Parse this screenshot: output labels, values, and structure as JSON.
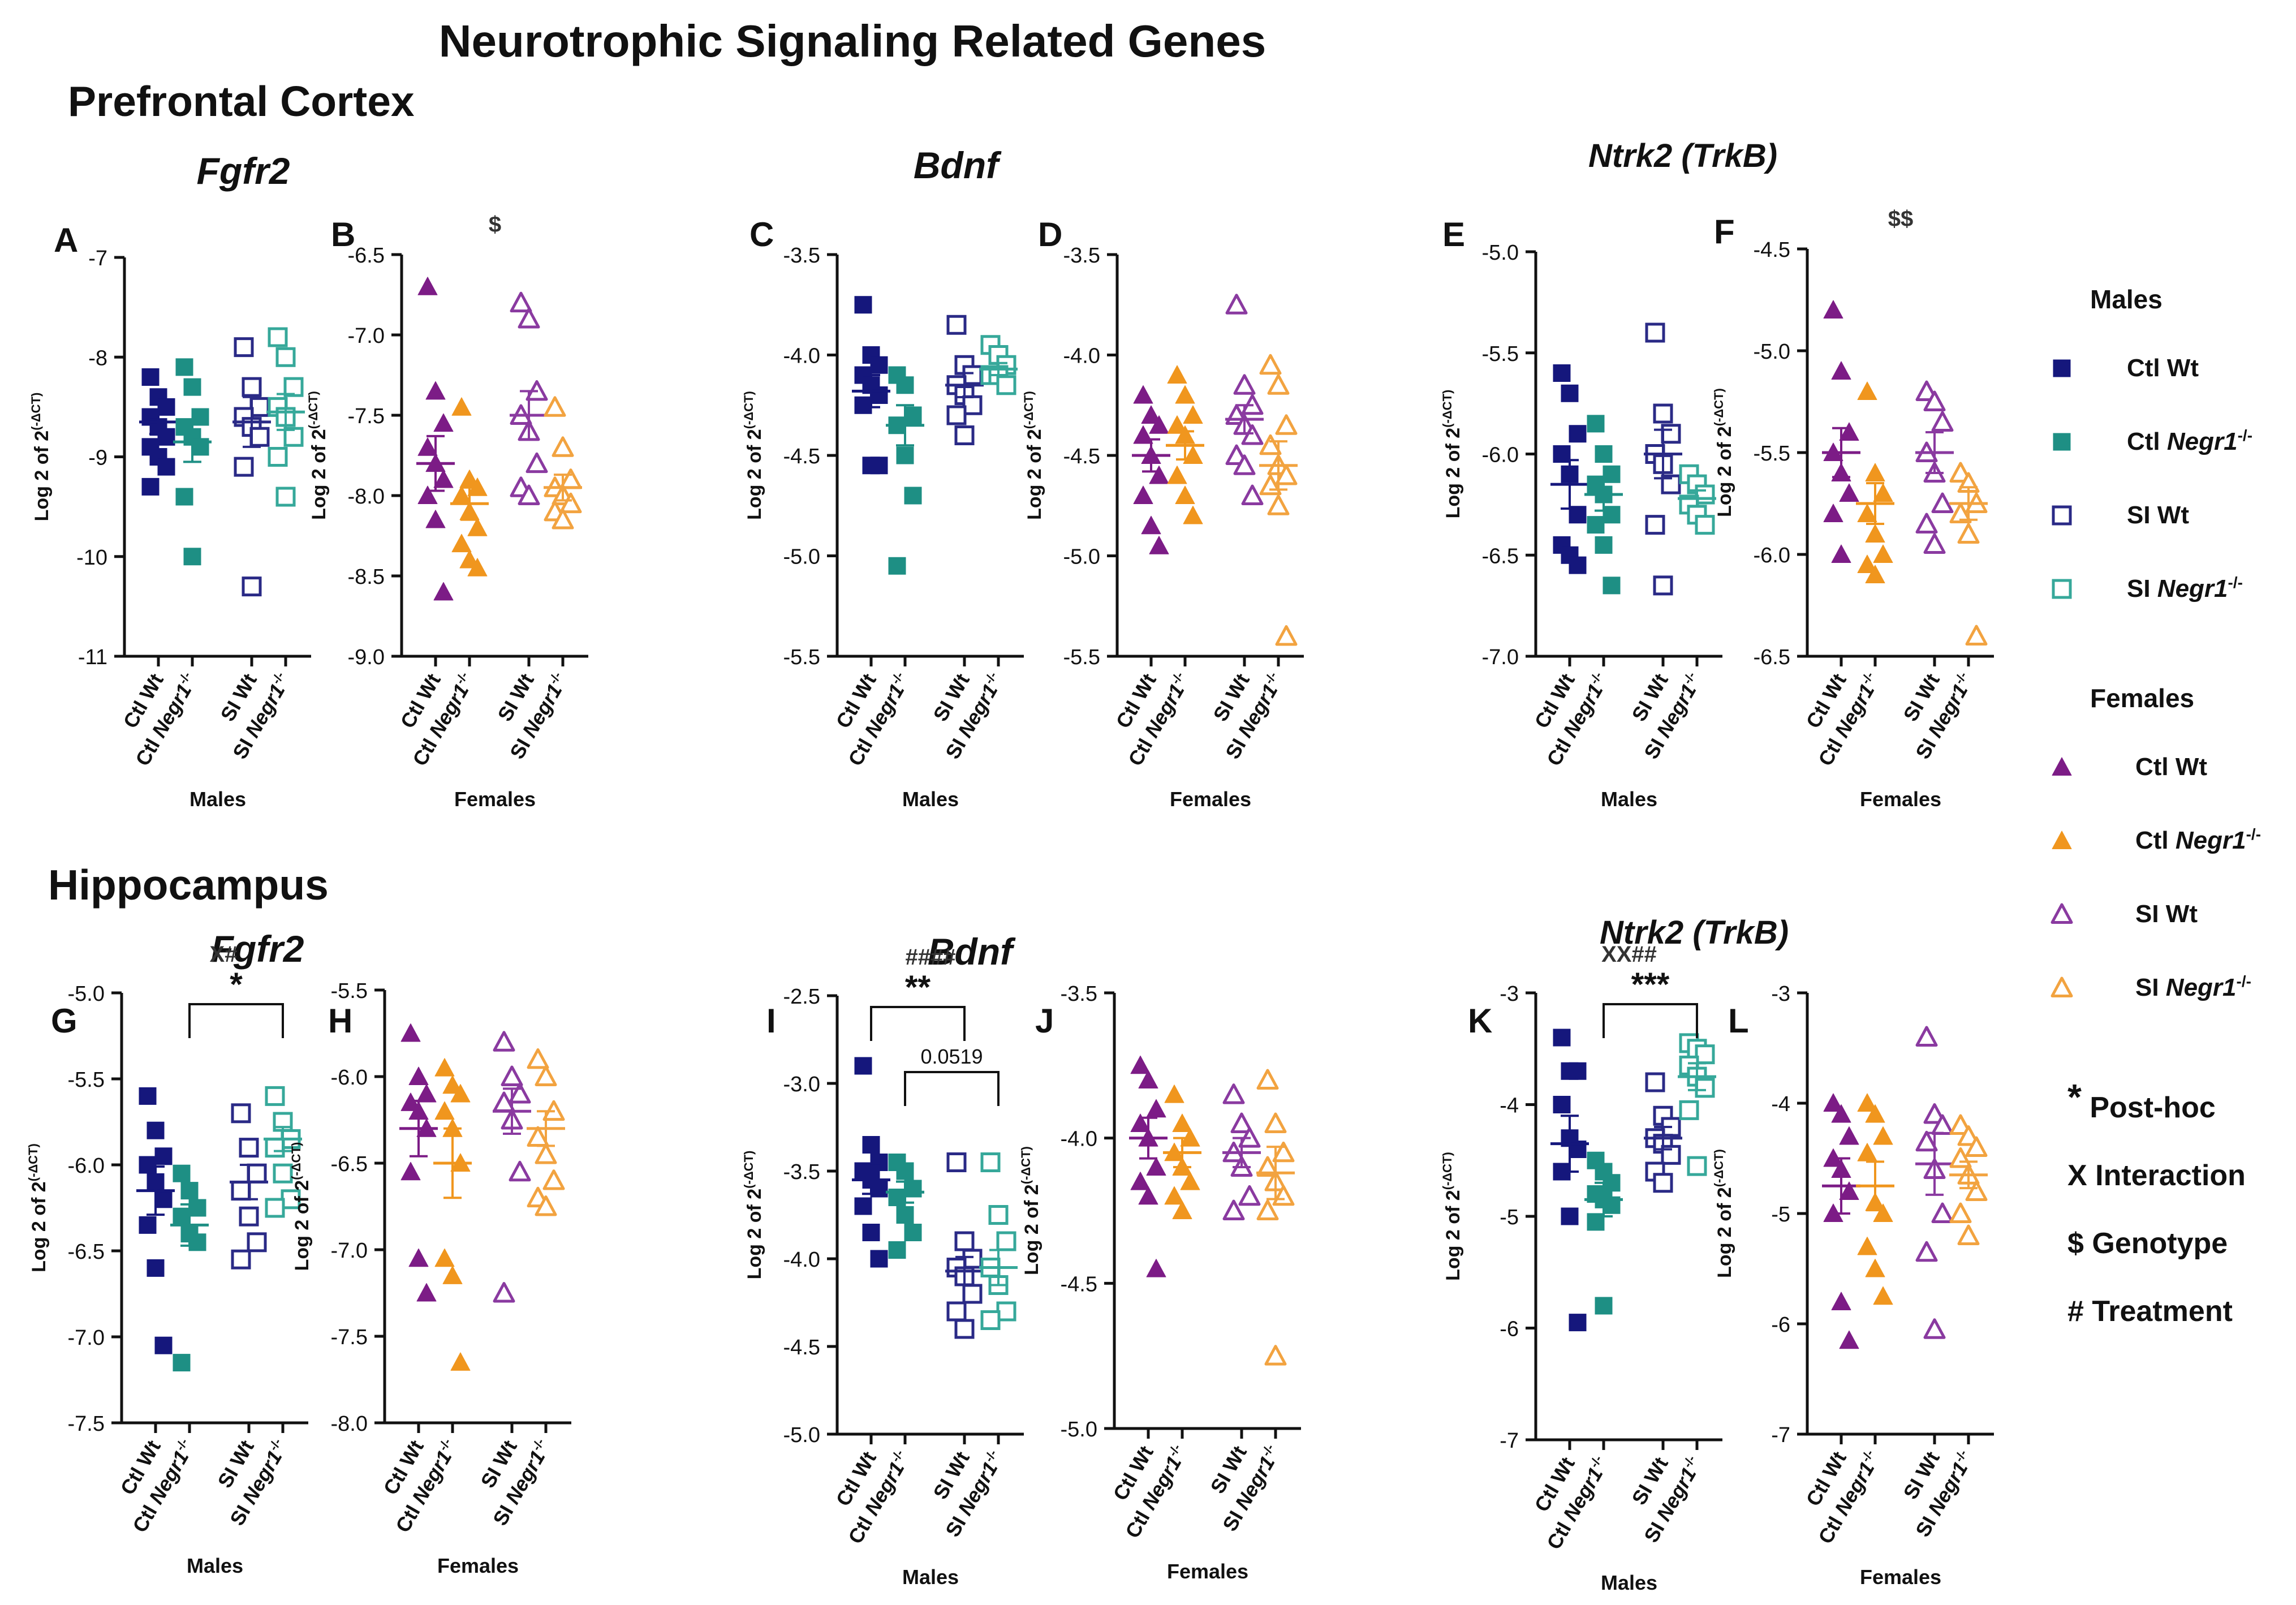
{
  "title": "Neurotrophic Signaling Related Genes",
  "regions": [
    {
      "id": "pfc",
      "label": "Prefrontal Cortex"
    },
    {
      "id": "hip",
      "label": "Hippocampus"
    }
  ],
  "gene_titles": {
    "pfc_fgfr2": "Fgfr2",
    "pfc_bdnf": "Bdnf",
    "pfc_ntrk2": "Ntrk2 (TrkB)",
    "hip_fgfr2": "Fgfr2",
    "hip_bdnf": "Bdnf",
    "hip_ntrk2": "Ntrk2 (TrkB)"
  },
  "ylabel_base": "Log 2 of 2",
  "ylabel_sup": "(-ΔCT)",
  "cat_labels": [
    {
      "prefix": "Ctl ",
      "gene": "Wt",
      "italic": false
    },
    {
      "prefix": "Ctl ",
      "gene": "Negr1",
      "sup": "-/-",
      "italic": true
    },
    {
      "prefix": "SI ",
      "gene": "Wt",
      "italic": false
    },
    {
      "prefix": "SI ",
      "gene": "Negr1",
      "sup": "-/-",
      "italic": true
    }
  ],
  "colors": {
    "ctl_wt_male": "#15177c",
    "ctl_ko_male": "#1e8f84",
    "si_wt_male": "#2a2a86",
    "si_ko_male": "#36a89a",
    "ctl_wt_female": "#7c1c86",
    "ctl_ko_female": "#f0961e",
    "si_wt_female": "#8a3aa0",
    "si_ko_female": "#f2a340"
  },
  "legend": {
    "males_title": "Males",
    "females_title": "Females",
    "male_entries": [
      {
        "marker": "square-filled",
        "color": "#15177c",
        "prefix": "Ctl ",
        "gene": "Wt",
        "sup": "",
        "italic": false
      },
      {
        "marker": "square-filled",
        "color": "#1e8f84",
        "prefix": "Ctl ",
        "gene": "Negr1",
        "sup": "-/-",
        "italic": true
      },
      {
        "marker": "square-open",
        "color": "#2a2a86",
        "prefix": "SI ",
        "gene": "Wt",
        "sup": "",
        "italic": false
      },
      {
        "marker": "square-open",
        "color": "#36a89a",
        "prefix": "SI ",
        "gene": "Negr1",
        "sup": "-/-",
        "italic": true
      }
    ],
    "female_entries": [
      {
        "marker": "triangle-filled",
        "color": "#7c1c86",
        "prefix": "Ctl ",
        "gene": "Wt",
        "sup": "",
        "italic": false
      },
      {
        "marker": "triangle-filled",
        "color": "#f0961e",
        "prefix": "Ctl ",
        "gene": "Negr1",
        "sup": "-/-",
        "italic": true
      },
      {
        "marker": "triangle-open",
        "color": "#8a3aa0",
        "prefix": "SI ",
        "gene": "Wt",
        "sup": "",
        "italic": false
      },
      {
        "marker": "triangle-open",
        "color": "#f2a340",
        "prefix": "SI ",
        "gene": "Negr1",
        "sup": "-/-",
        "italic": true
      }
    ],
    "stats_key": [
      {
        "sym": "*",
        "text": "Post-hoc"
      },
      {
        "sym": "X",
        "text": "Interaction"
      },
      {
        "sym": "$",
        "text": "Genotype"
      },
      {
        "sym": "#",
        "text": "Treatment"
      }
    ]
  },
  "chart_data": [
    {
      "panel": "A",
      "type": "scatter",
      "sex": "Males",
      "xlabel": "Males",
      "ylim": [
        -11,
        -7
      ],
      "ticks": [
        "-7",
        "-8",
        "-9",
        "-10",
        "-11"
      ],
      "groups": [
        {
          "values": [
            -8.2,
            -8.4,
            -8.5,
            -8.6,
            -8.7,
            -8.8,
            -8.9,
            -9.0,
            -9.1,
            -9.3
          ],
          "mean": -8.65,
          "sem": 0.12
        },
        {
          "values": [
            -8.1,
            -8.3,
            -8.6,
            -8.7,
            -8.8,
            -8.9,
            -9.4,
            -10.0
          ],
          "mean": -8.85,
          "sem": 0.2
        },
        {
          "values": [
            -7.9,
            -8.3,
            -8.5,
            -8.6,
            -8.7,
            -8.8,
            -9.1,
            -10.3
          ],
          "mean": -8.65,
          "sem": 0.25
        },
        {
          "values": [
            -7.8,
            -8.0,
            -8.3,
            -8.5,
            -8.6,
            -8.8,
            -9.0,
            -9.4
          ],
          "mean": -8.55,
          "sem": 0.18
        }
      ],
      "annotations": []
    },
    {
      "panel": "B",
      "type": "scatter",
      "sex": "Females",
      "xlabel": "Females",
      "ylim": [
        -9,
        -6.5
      ],
      "ticks": [
        "-6.5",
        "-7.0",
        "-7.5",
        "-8.0",
        "-8.5",
        "-9.0"
      ],
      "groups": [
        {
          "values": [
            -6.7,
            -7.35,
            -7.55,
            -7.7,
            -7.8,
            -7.9,
            -8.0,
            -8.15,
            -8.6
          ],
          "mean": -7.8,
          "sem": 0.17
        },
        {
          "values": [
            -7.45,
            -7.9,
            -7.95,
            -8.0,
            -8.1,
            -8.2,
            -8.3,
            -8.4,
            -8.45
          ],
          "mean": -8.05,
          "sem": 0.1
        },
        {
          "values": [
            -6.8,
            -6.9,
            -7.35,
            -7.5,
            -7.6,
            -7.8,
            -7.95,
            -8.0
          ],
          "mean": -7.5,
          "sem": 0.15
        },
        {
          "values": [
            -7.45,
            -7.7,
            -7.9,
            -7.95,
            -8.0,
            -8.05,
            -8.1,
            -8.15
          ],
          "mean": -7.95,
          "sem": 0.08
        }
      ],
      "annotations": [
        {
          "text": "$"
        }
      ]
    },
    {
      "panel": "C",
      "type": "scatter",
      "sex": "Males",
      "xlabel": "Males",
      "ylim": [
        -5.5,
        -3.5
      ],
      "ticks": [
        "-3.5",
        "-4.0",
        "-4.5",
        "-5.0",
        "-5.5"
      ],
      "groups": [
        {
          "values": [
            -3.75,
            -4.0,
            -4.05,
            -4.1,
            -4.15,
            -4.2,
            -4.25,
            -4.55,
            -4.55
          ],
          "mean": -4.18,
          "sem": 0.08
        },
        {
          "values": [
            -4.1,
            -4.15,
            -4.3,
            -4.35,
            -4.5,
            -4.7,
            -5.05
          ],
          "mean": -4.35,
          "sem": 0.1
        },
        {
          "values": [
            -3.85,
            -4.05,
            -4.1,
            -4.15,
            -4.2,
            -4.25,
            -4.3,
            -4.4
          ],
          "mean": -4.15,
          "sem": 0.06
        },
        {
          "values": [
            -3.95,
            -4.0,
            -4.05,
            -4.1,
            -4.1,
            -4.15
          ],
          "mean": -4.07,
          "sem": 0.03
        }
      ],
      "annotations": []
    },
    {
      "panel": "D",
      "type": "scatter",
      "sex": "Females",
      "xlabel": "Females",
      "ylim": [
        -5.5,
        -3.5
      ],
      "ticks": [
        "-3.5",
        "-4.0",
        "-4.5",
        "-5.0",
        "-5.5"
      ],
      "groups": [
        {
          "values": [
            -4.2,
            -4.3,
            -4.35,
            -4.4,
            -4.5,
            -4.6,
            -4.7,
            -4.85,
            -4.95
          ],
          "mean": -4.5,
          "sem": 0.08
        },
        {
          "values": [
            -4.1,
            -4.2,
            -4.3,
            -4.35,
            -4.4,
            -4.5,
            -4.6,
            -4.7,
            -4.8
          ],
          "mean": -4.45,
          "sem": 0.07
        },
        {
          "values": [
            -3.75,
            -4.15,
            -4.25,
            -4.3,
            -4.35,
            -4.4,
            -4.5,
            -4.55,
            -4.7
          ],
          "mean": -4.32,
          "sem": 0.07
        },
        {
          "values": [
            -4.05,
            -4.15,
            -4.35,
            -4.45,
            -4.55,
            -4.6,
            -4.65,
            -4.75,
            -5.4
          ],
          "mean": -4.55,
          "sem": 0.12
        }
      ],
      "annotations": []
    },
    {
      "panel": "E",
      "type": "scatter",
      "sex": "Males",
      "xlabel": "Males",
      "ylim": [
        -7.0,
        -5.0
      ],
      "ticks": [
        "-5.0",
        "-5.5",
        "-6.0",
        "-6.5",
        "-7.0"
      ],
      "groups": [
        {
          "values": [
            -5.6,
            -5.7,
            -5.9,
            -6.0,
            -6.1,
            -6.3,
            -6.45,
            -6.5,
            -6.55
          ],
          "mean": -6.15,
          "sem": 0.12
        },
        {
          "values": [
            -5.85,
            -6.0,
            -6.1,
            -6.15,
            -6.2,
            -6.3,
            -6.35,
            -6.45,
            -6.65
          ],
          "mean": -6.2,
          "sem": 0.08
        },
        {
          "values": [
            -5.4,
            -5.8,
            -5.9,
            -6.0,
            -6.05,
            -6.15,
            -6.35,
            -6.65
          ],
          "mean": -6.0,
          "sem": 0.12
        },
        {
          "values": [
            -6.1,
            -6.15,
            -6.2,
            -6.25,
            -6.3,
            -6.35
          ],
          "mean": -6.22,
          "sem": 0.04
        }
      ],
      "annotations": []
    },
    {
      "panel": "F",
      "type": "scatter",
      "sex": "Females",
      "xlabel": "Females",
      "ylim": [
        -6.5,
        -4.5
      ],
      "ticks": [
        "-4.5",
        "-5.0",
        "-5.5",
        "-6.0",
        "-6.5"
      ],
      "groups": [
        {
          "values": [
            -4.8,
            -5.1,
            -5.4,
            -5.5,
            -5.6,
            -5.7,
            -5.8,
            -6.0
          ],
          "mean": -5.5,
          "sem": 0.12
        },
        {
          "values": [
            -5.2,
            -5.6,
            -5.7,
            -5.8,
            -5.9,
            -6.0,
            -6.05,
            -6.1
          ],
          "mean": -5.75,
          "sem": 0.1
        },
        {
          "values": [
            -5.2,
            -5.25,
            -5.35,
            -5.5,
            -5.6,
            -5.75,
            -5.85,
            -5.95
          ],
          "mean": -5.5,
          "sem": 0.1
        },
        {
          "values": [
            -5.6,
            -5.65,
            -5.75,
            -5.8,
            -5.9,
            -6.4
          ],
          "mean": -5.75,
          "sem": 0.08
        }
      ],
      "annotations": [
        {
          "text": "$$"
        }
      ]
    },
    {
      "panel": "G",
      "type": "scatter",
      "sex": "Males",
      "xlabel": "Males",
      "ylim": [
        -7.5,
        -5.0
      ],
      "ticks": [
        "-5.0",
        "-5.5",
        "-6.0",
        "-6.5",
        "-7.0",
        "-7.5"
      ],
      "groups": [
        {
          "values": [
            -5.6,
            -5.8,
            -5.95,
            -6.0,
            -6.1,
            -6.2,
            -6.35,
            -6.6,
            -7.05
          ],
          "mean": -6.15,
          "sem": 0.14
        },
        {
          "values": [
            -6.05,
            -6.15,
            -6.25,
            -6.3,
            -6.4,
            -6.45,
            -7.15
          ],
          "mean": -6.35,
          "sem": 0.12
        },
        {
          "values": [
            -5.7,
            -5.9,
            -6.05,
            -6.15,
            -6.3,
            -6.45,
            -6.55
          ],
          "mean": -6.1,
          "sem": 0.1
        },
        {
          "values": [
            -5.6,
            -5.75,
            -5.85,
            -5.9,
            -6.05,
            -6.2,
            -6.25
          ],
          "mean": -5.85,
          "sem": 0.07
        }
      ],
      "annotations": [
        {
          "text": "X#"
        },
        {
          "text": "*",
          "from": 1,
          "to": 3
        }
      ]
    },
    {
      "panel": "H",
      "type": "scatter",
      "sex": "Females",
      "xlabel": "Females",
      "ylim": [
        -8.0,
        -5.5
      ],
      "ticks": [
        "-5.5",
        "-6.0",
        "-6.5",
        "-7.0",
        "-7.5",
        "-8.0"
      ],
      "groups": [
        {
          "values": [
            -5.75,
            -6.0,
            -6.1,
            -6.15,
            -6.2,
            -6.3,
            -6.55,
            -7.05,
            -7.25
          ],
          "mean": -6.3,
          "sem": 0.16
        },
        {
          "values": [
            -5.95,
            -6.05,
            -6.1,
            -6.2,
            -6.3,
            -6.5,
            -7.05,
            -7.15,
            -7.65
          ],
          "mean": -6.5,
          "sem": 0.2
        },
        {
          "values": [
            -5.8,
            -6.0,
            -6.1,
            -6.15,
            -6.25,
            -6.55,
            -7.25
          ],
          "mean": -6.2,
          "sem": 0.13
        },
        {
          "values": [
            -5.9,
            -6.0,
            -6.2,
            -6.35,
            -6.45,
            -6.6,
            -6.7,
            -6.75
          ],
          "mean": -6.3,
          "sem": 0.1
        }
      ],
      "annotations": []
    },
    {
      "panel": "I",
      "type": "scatter",
      "sex": "Males",
      "xlabel": "Males",
      "ylim": [
        -5.0,
        -2.5
      ],
      "ticks": [
        "-2.5",
        "-3.0",
        "-3.5",
        "-4.0",
        "-4.5",
        "-5.0"
      ],
      "groups": [
        {
          "values": [
            -2.9,
            -3.35,
            -3.45,
            -3.5,
            -3.55,
            -3.6,
            -3.7,
            -3.85,
            -4.0
          ],
          "mean": -3.55,
          "sem": 0.08
        },
        {
          "values": [
            -3.45,
            -3.5,
            -3.6,
            -3.65,
            -3.75,
            -3.85,
            -3.95
          ],
          "mean": -3.62,
          "sem": 0.06
        },
        {
          "values": [
            -3.45,
            -3.9,
            -4.0,
            -4.05,
            -4.1,
            -4.2,
            -4.3,
            -4.4
          ],
          "mean": -4.07,
          "sem": 0.08
        },
        {
          "values": [
            -3.45,
            -3.75,
            -3.9,
            -4.05,
            -4.15,
            -4.3,
            -4.35
          ],
          "mean": -4.05,
          "sem": 0.1
        }
      ],
      "annotations": [
        {
          "text": "####"
        },
        {
          "text": "**",
          "from": 0,
          "to": 2
        },
        {
          "text": "0.0519",
          "from": 1,
          "to": 3
        }
      ]
    },
    {
      "panel": "J",
      "type": "scatter",
      "sex": "Females",
      "xlabel": "Females",
      "ylim": [
        -5.0,
        -3.5
      ],
      "ticks": [
        "-3.5",
        "-4.0",
        "-4.5",
        "-5.0"
      ],
      "groups": [
        {
          "values": [
            -3.75,
            -3.8,
            -3.9,
            -3.95,
            -4.0,
            -4.1,
            -4.15,
            -4.2,
            -4.45
          ],
          "mean": -4.0,
          "sem": 0.07
        },
        {
          "values": [
            -3.85,
            -3.95,
            -4.0,
            -4.05,
            -4.1,
            -4.15,
            -4.2,
            -4.25
          ],
          "mean": -4.05,
          "sem": 0.05
        },
        {
          "values": [
            -3.85,
            -3.95,
            -4.0,
            -4.05,
            -4.1,
            -4.2,
            -4.25
          ],
          "mean": -4.05,
          "sem": 0.05
        },
        {
          "values": [
            -3.8,
            -3.95,
            -4.05,
            -4.1,
            -4.15,
            -4.2,
            -4.25,
            -4.75
          ],
          "mean": -4.12,
          "sem": 0.09
        }
      ],
      "annotations": []
    },
    {
      "panel": "K",
      "type": "scatter",
      "sex": "Males",
      "xlabel": "Males",
      "ylim": [
        -7,
        -3
      ],
      "ticks": [
        "-3",
        "-4",
        "-5",
        "-6",
        "-7"
      ],
      "groups": [
        {
          "values": [
            -3.4,
            -3.7,
            -3.7,
            -4.0,
            -4.3,
            -4.4,
            -4.6,
            -5.0,
            -5.95
          ],
          "mean": -4.35,
          "sem": 0.25
        },
        {
          "values": [
            -4.5,
            -4.6,
            -4.7,
            -4.8,
            -4.85,
            -4.9,
            -5.05,
            -5.8
          ],
          "mean": -4.85,
          "sem": 0.15
        },
        {
          "values": [
            -3.8,
            -4.1,
            -4.2,
            -4.3,
            -4.35,
            -4.45,
            -4.6,
            -4.7
          ],
          "mean": -4.3,
          "sem": 0.1
        },
        {
          "values": [
            -3.45,
            -3.5,
            -3.55,
            -3.65,
            -3.75,
            -3.85,
            -4.05,
            -4.55
          ],
          "mean": -3.75,
          "sem": 0.12
        }
      ],
      "annotations": [
        {
          "text": "XX##"
        },
        {
          "text": "***",
          "from": 1,
          "to": 3
        }
      ]
    },
    {
      "panel": "L",
      "type": "scatter",
      "sex": "Females",
      "xlabel": "Females",
      "ylim": [
        -7,
        -3
      ],
      "ticks": [
        "-3",
        "-4",
        "-5",
        "-6",
        "-7"
      ],
      "groups": [
        {
          "values": [
            -4.0,
            -4.1,
            -4.3,
            -4.5,
            -4.6,
            -4.8,
            -5.0,
            -5.8,
            -6.15
          ],
          "mean": -4.75,
          "sem": 0.25
        },
        {
          "values": [
            -4.0,
            -4.1,
            -4.3,
            -4.45,
            -4.9,
            -5.0,
            -5.3,
            -5.5,
            -5.75
          ],
          "mean": -4.75,
          "sem": 0.22
        },
        {
          "values": [
            -3.4,
            -4.1,
            -4.2,
            -4.35,
            -4.6,
            -5.0,
            -5.35,
            -6.05
          ],
          "mean": -4.55,
          "sem": 0.28
        },
        {
          "values": [
            -4.2,
            -4.3,
            -4.4,
            -4.5,
            -4.65,
            -4.8,
            -5.0,
            -5.2
          ],
          "mean": -4.65,
          "sem": 0.12
        }
      ],
      "annotations": []
    }
  ]
}
